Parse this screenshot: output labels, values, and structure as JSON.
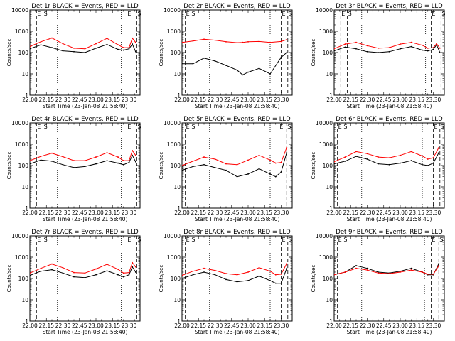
{
  "figure": {
    "xlabel": "Start Time (23-Jan-08 21:58:40)",
    "ylabel": "Counts/sec",
    "x_tick_labels": [
      "22:00",
      "22:15",
      "22:30",
      "22:45",
      "23:00",
      "23:15",
      "23:30"
    ],
    "y_tick_labels": [
      "1",
      "10",
      "100",
      "1000",
      "10000"
    ],
    "colors": {
      "events": "#000000",
      "lld": "#ff0000"
    }
  },
  "chart_data": [
    {
      "type": "line",
      "title": "Det 1r BLACK = Events, RED = LLD",
      "xlabel": "Start Time (23-Jan-08 21:58:40)",
      "ylabel": "Counts/sec",
      "x_unit": "minutes after 22:00",
      "xlim": [
        0,
        100
      ],
      "ylim": [
        1,
        10000
      ],
      "y_scale": "log",
      "x": [
        0,
        10,
        20,
        30,
        40,
        50,
        60,
        70,
        80,
        85,
        90,
        93,
        96
      ],
      "series": [
        {
          "name": "Events",
          "values": [
            150,
            230,
            170,
            120,
            110,
            100,
            160,
            240,
            140,
            130,
            150,
            250,
            110
          ]
        },
        {
          "name": "LLD",
          "values": [
            190,
            320,
            480,
            260,
            160,
            150,
            260,
            460,
            230,
            170,
            170,
            470,
            300
          ]
        }
      ],
      "markers": [
        {
          "x": 6,
          "label": "E"
        },
        {
          "x": 12,
          "label": "S"
        },
        {
          "x": 88,
          "label": "E"
        },
        {
          "x": 97,
          "label": "S"
        }
      ],
      "dotted_lines": [
        25,
        83
      ]
    },
    {
      "type": "line",
      "title": "Det 2r BLACK = Events, RED = LLD",
      "xlabel": "Start Time (23-Jan-08 21:58:40)",
      "ylabel": "Counts/sec",
      "x_unit": "minutes after 22:00",
      "xlim": [
        0,
        100
      ],
      "ylim": [
        1,
        10000
      ],
      "y_scale": "log",
      "x": [
        0,
        10,
        20,
        30,
        40,
        50,
        55,
        60,
        70,
        80,
        90,
        95
      ],
      "series": [
        {
          "name": "Events",
          "values": [
            30,
            30,
            55,
            40,
            25,
            15,
            9,
            12,
            18,
            10,
            60,
            100
          ]
        },
        {
          "name": "LLD",
          "values": [
            300,
            350,
            420,
            380,
            320,
            290,
            300,
            320,
            330,
            300,
            330,
            400
          ]
        }
      ],
      "markers": [
        {
          "x": 3,
          "label": "E"
        },
        {
          "x": 8,
          "label": "S"
        },
        {
          "x": 90,
          "label": "E"
        },
        {
          "x": 96,
          "label": "S"
        }
      ],
      "dotted_lines": [
        25,
        80
      ]
    },
    {
      "type": "line",
      "title": "Det 3r BLACK = Events, RED = LLD",
      "xlabel": "Start Time (23-Jan-08 21:58:40)",
      "ylabel": "Counts/sec",
      "x_unit": "minutes after 22:00",
      "xlim": [
        0,
        100
      ],
      "ylim": [
        1,
        10000
      ],
      "y_scale": "log",
      "x": [
        0,
        10,
        20,
        30,
        40,
        50,
        60,
        70,
        80,
        85,
        90,
        93,
        96
      ],
      "series": [
        {
          "name": "Events",
          "values": [
            120,
            180,
            150,
            110,
            100,
            110,
            150,
            190,
            130,
            120,
            140,
            230,
            100
          ]
        },
        {
          "name": "LLD",
          "values": [
            150,
            250,
            300,
            210,
            160,
            170,
            250,
            300,
            220,
            160,
            170,
            260,
            160
          ]
        }
      ],
      "markers": [
        {
          "x": 6,
          "label": "E"
        },
        {
          "x": 12,
          "label": "S"
        },
        {
          "x": 88,
          "label": "E"
        },
        {
          "x": 97,
          "label": "S"
        }
      ],
      "dotted_lines": [
        25,
        83
      ]
    },
    {
      "type": "line",
      "title": "Det 4r BLACK = Events, RED = LLD",
      "xlabel": "Start Time (23-Jan-08 21:58:40)",
      "ylabel": "Counts/sec",
      "x_unit": "minutes after 22:00",
      "xlim": [
        0,
        100
      ],
      "ylim": [
        1,
        10000
      ],
      "y_scale": "log",
      "x": [
        0,
        10,
        20,
        30,
        40,
        50,
        60,
        70,
        80,
        85,
        90,
        93,
        96
      ],
      "series": [
        {
          "name": "Events",
          "values": [
            120,
            180,
            160,
            110,
            80,
            90,
            120,
            170,
            130,
            110,
            140,
            300,
            150
          ]
        },
        {
          "name": "LLD",
          "values": [
            170,
            270,
            380,
            260,
            170,
            170,
            250,
            400,
            250,
            170,
            170,
            500,
            300
          ]
        }
      ],
      "markers": [
        {
          "x": 6,
          "label": "E"
        },
        {
          "x": 12,
          "label": "S"
        },
        {
          "x": 88,
          "label": "E"
        },
        {
          "x": 97,
          "label": "S"
        }
      ],
      "dotted_lines": [
        25,
        83
      ]
    },
    {
      "type": "line",
      "title": "Det 5r BLACK = Events, RED = LLD",
      "xlabel": "Start Time (23-Jan-08 21:58:40)",
      "ylabel": "Counts/sec",
      "x_unit": "minutes after 22:00",
      "xlim": [
        0,
        100
      ],
      "ylim": [
        1,
        10000
      ],
      "y_scale": "log",
      "x": [
        0,
        10,
        20,
        30,
        40,
        50,
        60,
        70,
        80,
        85,
        90,
        95
      ],
      "series": [
        {
          "name": "Events",
          "values": [
            60,
            90,
            110,
            80,
            60,
            30,
            40,
            70,
            40,
            30,
            50,
            400
          ]
        },
        {
          "name": "LLD",
          "values": [
            100,
            160,
            250,
            200,
            120,
            110,
            180,
            300,
            180,
            130,
            140,
            700
          ]
        }
      ],
      "markers": [
        {
          "x": 3,
          "label": "E"
        },
        {
          "x": 8,
          "label": "S"
        },
        {
          "x": 88,
          "label": "E"
        },
        {
          "x": 95,
          "label": "S"
        }
      ],
      "dotted_lines": [
        25,
        80
      ]
    },
    {
      "type": "line",
      "title": "Det 6r BLACK = Events, RED = LLD",
      "xlabel": "Start Time (23-Jan-08 21:58:40)",
      "ylabel": "Counts/sec",
      "x_unit": "minutes after 22:00",
      "xlim": [
        0,
        100
      ],
      "ylim": [
        1,
        10000
      ],
      "y_scale": "log",
      "x": [
        0,
        10,
        20,
        30,
        40,
        50,
        60,
        70,
        80,
        85,
        90,
        95
      ],
      "series": [
        {
          "name": "Events",
          "values": [
            120,
            160,
            270,
            200,
            120,
            110,
            130,
            170,
            110,
            100,
            130,
            400
          ]
        },
        {
          "name": "LLD",
          "values": [
            150,
            250,
            450,
            360,
            250,
            230,
            300,
            450,
            280,
            200,
            230,
            700
          ]
        }
      ],
      "markers": [
        {
          "x": 3,
          "label": "E"
        },
        {
          "x": 8,
          "label": "S"
        },
        {
          "x": 90,
          "label": "E"
        },
        {
          "x": 96,
          "label": "S"
        }
      ],
      "dotted_lines": [
        25,
        80
      ]
    },
    {
      "type": "line",
      "title": "Det 7r BLACK = Events, RED = LLD",
      "xlabel": "Start Time (23-Jan-08 21:58:40)",
      "ylabel": "Counts/sec",
      "x_unit": "minutes after 22:00",
      "xlim": [
        0,
        100
      ],
      "ylim": [
        1,
        10000
      ],
      "y_scale": "log",
      "x": [
        0,
        10,
        20,
        30,
        40,
        50,
        60,
        70,
        80,
        85,
        90,
        93,
        96
      ],
      "series": [
        {
          "name": "Events",
          "values": [
            140,
            220,
            260,
            180,
            120,
            110,
            150,
            230,
            150,
            120,
            150,
            350,
            200
          ]
        },
        {
          "name": "LLD",
          "values": [
            180,
            300,
            480,
            320,
            190,
            180,
            280,
            460,
            270,
            180,
            190,
            550,
            350
          ]
        }
      ],
      "markers": [
        {
          "x": 6,
          "label": "E"
        },
        {
          "x": 12,
          "label": "S"
        },
        {
          "x": 88,
          "label": "E"
        },
        {
          "x": 97,
          "label": "S"
        }
      ],
      "dotted_lines": [
        25,
        83
      ]
    },
    {
      "type": "line",
      "title": "Det 8r BLACK = Events, RED = LLD",
      "xlabel": "Start Time (23-Jan-08 21:58:40)",
      "ylabel": "Counts/sec",
      "x_unit": "minutes after 22:00",
      "xlim": [
        0,
        100
      ],
      "ylim": [
        1,
        10000
      ],
      "y_scale": "log",
      "x": [
        0,
        10,
        20,
        30,
        40,
        50,
        60,
        70,
        80,
        85,
        90,
        95
      ],
      "series": [
        {
          "name": "Events",
          "values": [
            100,
            150,
            200,
            150,
            90,
            70,
            80,
            130,
            80,
            60,
            60,
            300
          ]
        },
        {
          "name": "LLD",
          "values": [
            140,
            220,
            300,
            240,
            170,
            150,
            200,
            320,
            220,
            150,
            160,
            500
          ]
        }
      ],
      "markers": [
        {
          "x": 3,
          "label": "E"
        },
        {
          "x": 8,
          "label": "S"
        },
        {
          "x": 90,
          "label": "E"
        },
        {
          "x": 96,
          "label": "S"
        }
      ],
      "dotted_lines": [
        25,
        80
      ]
    },
    {
      "type": "line",
      "title": "Det 9r BLACK = Events, RED = LLD",
      "xlabel": "Start Time (23-Jan-08 21:58:40)",
      "ylabel": "Counts/sec",
      "x_unit": "minutes after 22:00",
      "xlim": [
        0,
        100
      ],
      "ylim": [
        1,
        10000
      ],
      "y_scale": "log",
      "x": [
        0,
        10,
        20,
        30,
        40,
        50,
        60,
        70,
        80,
        85,
        90,
        95
      ],
      "series": [
        {
          "name": "Events",
          "values": [
            150,
            200,
            400,
            300,
            200,
            180,
            220,
            300,
            200,
            150,
            150,
            500
          ]
        },
        {
          "name": "LLD",
          "values": [
            150,
            200,
            300,
            250,
            180,
            170,
            200,
            250,
            200,
            160,
            160,
            400
          ]
        }
      ],
      "markers": [
        {
          "x": 3,
          "label": "E"
        },
        {
          "x": 8,
          "label": "S"
        },
        {
          "x": 88,
          "label": "E"
        },
        {
          "x": 95,
          "label": "S"
        }
      ],
      "dotted_lines": [
        25,
        82
      ]
    }
  ]
}
